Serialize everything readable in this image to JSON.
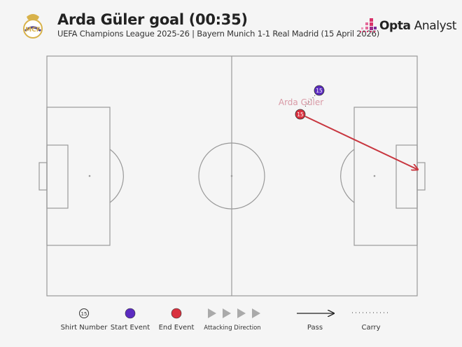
{
  "header": {
    "title": "Arda Güler goal (00:35)",
    "subtitle": "UEFA Champions League 2025-26 | Bayern Munich 1-1 Real Madrid (15 April 2026)",
    "crest_icon": "real-madrid-crest",
    "brand": {
      "bold": "Opta",
      "rest": " Analyst",
      "logo_icon": "opta-dots-logo"
    }
  },
  "event": {
    "player": "Arda Güler",
    "shirt_number": "15",
    "start_color": "#5b2bc0",
    "end_color": "#d9313f",
    "pass_color": "#c8363f"
  },
  "legend": {
    "shirt_number_sample": "15",
    "shirt_number": "Shirt Number",
    "start_event": "Start Event",
    "end_event": "End Event",
    "attacking_direction": "Attacking Direction",
    "pass": "Pass",
    "carry": "Carry"
  }
}
